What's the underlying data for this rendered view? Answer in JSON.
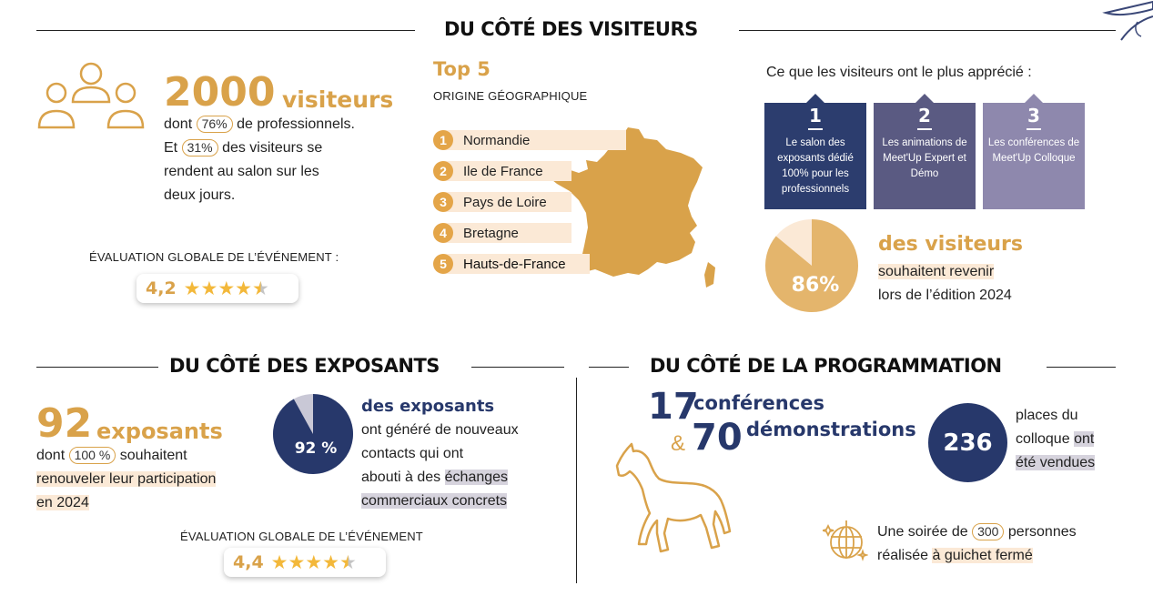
{
  "visiteurs": {
    "title": "DU CÔTÉ DES VISITEURS",
    "count": "2000",
    "count_label": "visiteurs",
    "line1_pre": "dont",
    "pro_pct": "76%",
    "line1_post": "de professionnels.",
    "line2_pre": "Et",
    "two_days_pct": "31%",
    "line2_post": "des visiteurs se",
    "line3": "rendent au salon sur les",
    "line4": "deux jours.",
    "rating_label": "ÉVALUATION GLOBALE DE L’ÉVÉNEMENT :",
    "rating_value": "4,2",
    "rating_stars": 4.2
  },
  "origine": {
    "title": "Top 5",
    "subtitle": "ORIGINE GÉOGRAPHIQUE",
    "items": [
      {
        "num": "1",
        "label": "Normandie"
      },
      {
        "num": "2",
        "label": "Ile de France"
      },
      {
        "num": "3",
        "label": "Pays de Loire"
      },
      {
        "num": "4",
        "label": "Bretagne"
      },
      {
        "num": "5",
        "label": "Hauts-de-France"
      }
    ]
  },
  "apprecie": {
    "title": "Ce que les visiteurs ont le plus apprécié :",
    "cards": [
      {
        "num": "1",
        "text": "Le salon des exposants dédié 100% pour les professionnels",
        "color": "#2c3d6e"
      },
      {
        "num": "2",
        "text": "Les animations de Meet'Up Expert et Démo",
        "color": "#5a5a82"
      },
      {
        "num": "3",
        "text": "Les conférences de Meet'Up Colloque",
        "color": "#8e88ad"
      }
    ]
  },
  "revenir": {
    "pct": "86%",
    "pct_value": 86,
    "label": "des visiteurs",
    "line1": "souhaitent revenir",
    "line2": "lors de l’édition 2024"
  },
  "exposants": {
    "title": "DU CÔTÉ DES EXPOSANTS",
    "count": "92",
    "count_label": "exposants",
    "line1_pre": "dont",
    "renew_pct": "100 %",
    "line1_post": "souhaitent",
    "line2": "renouveler leur participation",
    "line3": "en 2024",
    "pie_pct": "92 %",
    "pie_value": 92,
    "pie_title": "des exposants",
    "pie_line1": "ont généré de nouveaux",
    "pie_line2": "contacts qui ont",
    "pie_line3_pre": "abouti à des",
    "pie_line3_hl": "échanges",
    "pie_line4": "commerciaux concrets",
    "rating_label": "ÉVALUATION GLOBALE DE L’ÉVÉNEMENT",
    "rating_value": "4,4",
    "rating_stars": 4.4
  },
  "programmation": {
    "title": "DU CÔTÉ DE LA PROGRAMMATION",
    "conf_count": "17",
    "conf_label": "conférences",
    "amp": "&",
    "demo_count": "70",
    "demo_label": "démonstrations",
    "places_count": "236",
    "places_line1": "places du",
    "places_line2_pre": "colloque",
    "places_line2_hl": "ont",
    "places_line3": "été vendues",
    "soiree_pre": "Une soirée de",
    "soiree_count": "300",
    "soiree_post": "personnes",
    "soiree_line2_pre": "réalisée",
    "soiree_line2_hl": "à guichet fermé"
  },
  "colors": {
    "gold": "#d9a24a",
    "navy": "#27386b",
    "peach": "#fbe9d6"
  }
}
